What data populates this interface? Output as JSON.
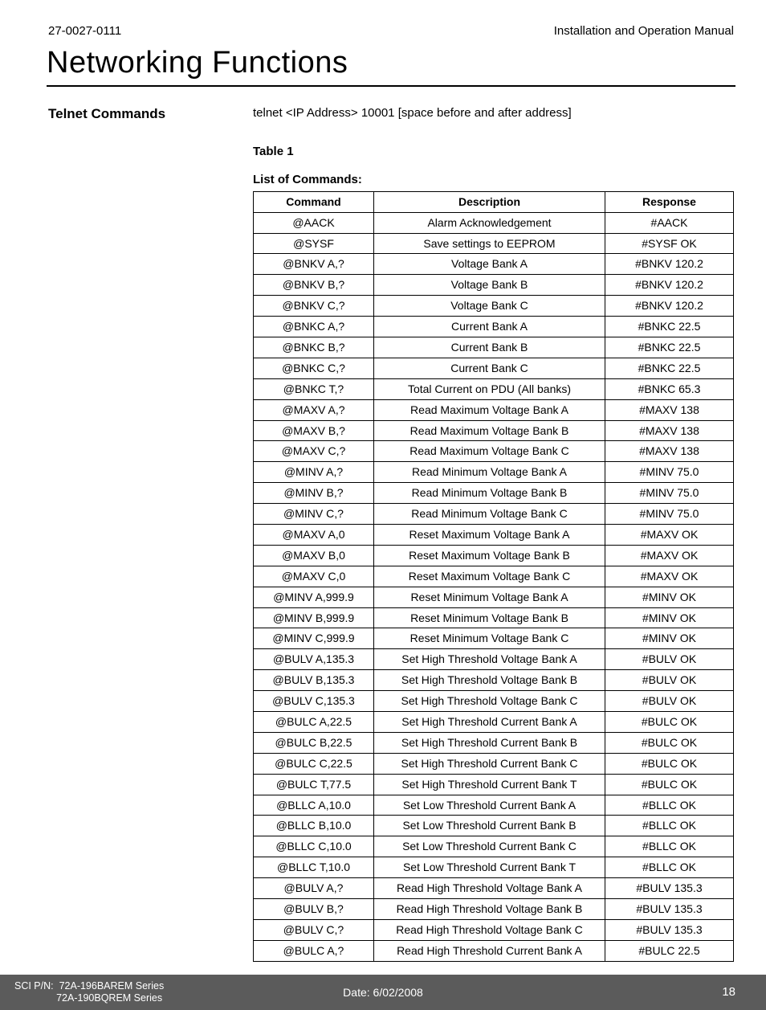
{
  "header": {
    "doc_id": "27-0027-0111",
    "doc_title": "Installation and Operation Manual"
  },
  "page_title": "Networking Functions",
  "side": {
    "heading": "Telnet Commands"
  },
  "main": {
    "telnet_line": "telnet <IP Address> 10001 [space before and after address]",
    "table_label": "Table 1",
    "list_label": "List of Commands:",
    "columns": [
      "Command",
      "Description",
      "Response"
    ],
    "rows": [
      [
        "@AACK",
        "Alarm Acknowledgement",
        "#AACK"
      ],
      [
        "@SYSF",
        "Save settings to EEPROM",
        "#SYSF OK"
      ],
      [
        "@BNKV A,?",
        "Voltage Bank A",
        "#BNKV 120.2"
      ],
      [
        "@BNKV B,?",
        "Voltage Bank B",
        "#BNKV 120.2"
      ],
      [
        "@BNKV C,?",
        "Voltage Bank C",
        "#BNKV 120.2"
      ],
      [
        "@BNKC A,?",
        "Current Bank A",
        "#BNKC 22.5"
      ],
      [
        "@BNKC B,?",
        "Current Bank B",
        "#BNKC 22.5"
      ],
      [
        "@BNKC C,?",
        "Current Bank C",
        "#BNKC 22.5"
      ],
      [
        "@BNKC T,?",
        "Total Current on PDU (All banks)",
        "#BNKC 65.3"
      ],
      [
        "@MAXV A,?",
        "Read Maximum Voltage Bank A",
        "#MAXV 138"
      ],
      [
        "@MAXV B,?",
        "Read Maximum Voltage Bank B",
        "#MAXV 138"
      ],
      [
        "@MAXV C,?",
        "Read Maximum Voltage Bank C",
        "#MAXV 138"
      ],
      [
        "@MINV A,?",
        "Read Minimum Voltage Bank A",
        "#MINV 75.0"
      ],
      [
        "@MINV B,?",
        "Read Minimum Voltage Bank B",
        "#MINV 75.0"
      ],
      [
        "@MINV C,?",
        "Read Minimum Voltage Bank C",
        "#MINV 75.0"
      ],
      [
        "@MAXV A,0",
        "Reset Maximum Voltage Bank A",
        "#MAXV OK"
      ],
      [
        "@MAXV B,0",
        "Reset Maximum Voltage Bank B",
        "#MAXV OK"
      ],
      [
        "@MAXV C,0",
        "Reset Maximum Voltage Bank C",
        "#MAXV OK"
      ],
      [
        "@MINV A,999.9",
        "Reset Minimum Voltage Bank A",
        "#MINV OK"
      ],
      [
        "@MINV B,999.9",
        "Reset Minimum Voltage Bank B",
        "#MINV OK"
      ],
      [
        "@MINV C,999.9",
        "Reset Minimum Voltage Bank C",
        "#MINV OK"
      ],
      [
        "@BULV A,135.3",
        "Set High Threshold Voltage Bank A",
        "#BULV OK"
      ],
      [
        "@BULV B,135.3",
        "Set High Threshold Voltage Bank B",
        "#BULV OK"
      ],
      [
        "@BULV C,135.3",
        "Set High Threshold Voltage Bank C",
        "#BULV OK"
      ],
      [
        "@BULC A,22.5",
        "Set High Threshold Current Bank A",
        "#BULC OK"
      ],
      [
        "@BULC B,22.5",
        "Set High Threshold Current Bank B",
        "#BULC OK"
      ],
      [
        "@BULC C,22.5",
        "Set High Threshold Current Bank C",
        "#BULC OK"
      ],
      [
        "@BULC T,77.5",
        "Set High Threshold Current Bank T",
        "#BULC OK"
      ],
      [
        "@BLLC A,10.0",
        "Set Low Threshold Current Bank A",
        "#BLLC OK"
      ],
      [
        "@BLLC B,10.0",
        "Set Low Threshold Current Bank B",
        "#BLLC OK"
      ],
      [
        "@BLLC C,10.0",
        "Set Low Threshold Current Bank C",
        "#BLLC OK"
      ],
      [
        "@BLLC T,10.0",
        "Set Low Threshold Current Bank T",
        "#BLLC OK"
      ],
      [
        "@BULV A,?",
        "Read High Threshold Voltage Bank A",
        "#BULV 135.3"
      ],
      [
        "@BULV B,?",
        "Read High Threshold Voltage Bank B",
        "#BULV 135.3"
      ],
      [
        "@BULV C,?",
        "Read High Threshold Voltage Bank C",
        "#BULV 135.3"
      ],
      [
        "@BULC A,?",
        "Read High Threshold Current Bank A",
        "#BULC 22.5"
      ]
    ]
  },
  "footer": {
    "pn_prefix": "SCI P/N:",
    "pn_line1": "72A-196BAREM Series",
    "pn_line2": "72A-190BQREM Series",
    "date": "Date: 6/02/2008",
    "page_number": "18"
  }
}
